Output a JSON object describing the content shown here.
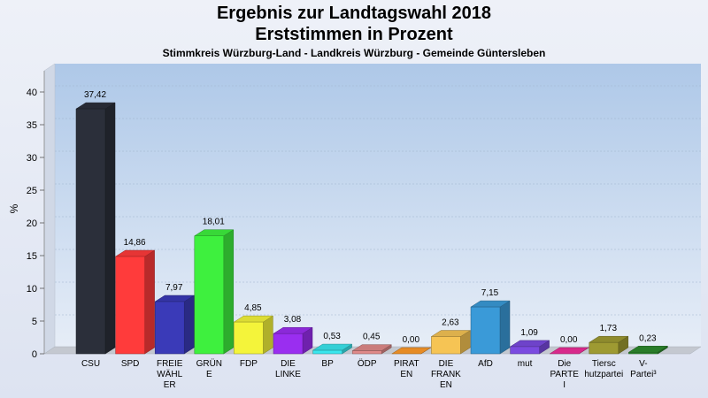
{
  "chart_data": {
    "type": "bar",
    "title": "Ergebnis zur Landtagswahl 2018",
    "title_line2": "Erststimmen in Prozent",
    "subtitle": "Stimmkreis Würzburg-Land - Landkreis Würzburg - Gemeinde Güntersleben",
    "ylabel": "%",
    "xlabel": "",
    "ylim": [
      0,
      42
    ],
    "yticks": [
      0,
      5,
      10,
      15,
      20,
      25,
      30,
      35,
      40
    ],
    "grid": true,
    "categories": [
      [
        "CSU"
      ],
      [
        "SPD"
      ],
      [
        "FREIE",
        "WÄHL",
        "ER"
      ],
      [
        "GRÜN",
        "E"
      ],
      [
        "FDP"
      ],
      [
        "DIE",
        "LINKE"
      ],
      [
        "BP"
      ],
      [
        "ÖDP"
      ],
      [
        "PIRAT",
        "EN"
      ],
      [
        "DIE",
        "FRANK",
        "EN"
      ],
      [
        "AfD"
      ],
      [
        "mut"
      ],
      [
        "Die",
        "PARTE",
        "I"
      ],
      [
        "Tiersc",
        "hutzpartei"
      ],
      [
        "V-",
        "Partei³"
      ]
    ],
    "values": [
      37.42,
      14.86,
      7.97,
      18.01,
      4.85,
      3.08,
      0.53,
      0.45,
      0.0,
      2.63,
      7.15,
      1.09,
      0.0,
      1.73,
      0.23
    ],
    "value_labels": [
      "37,42",
      "14,86",
      "7,97",
      "18,01",
      "4,85",
      "3,08",
      "0,53",
      "0,45",
      "0,00",
      "2,63",
      "7,15",
      "1,09",
      "0,00",
      "1,73",
      "0,23"
    ],
    "colors": [
      "#2b2f3a",
      "#ff3b3b",
      "#3a3ab8",
      "#3ef03e",
      "#f4f43a",
      "#9a2ef0",
      "#3ae6ee",
      "#e08a8a",
      "#ff9a2a",
      "#f6c454",
      "#3a9ad8",
      "#7a4ae0",
      "#f02e9a",
      "#9e9a32",
      "#2e8a2e"
    ]
  }
}
